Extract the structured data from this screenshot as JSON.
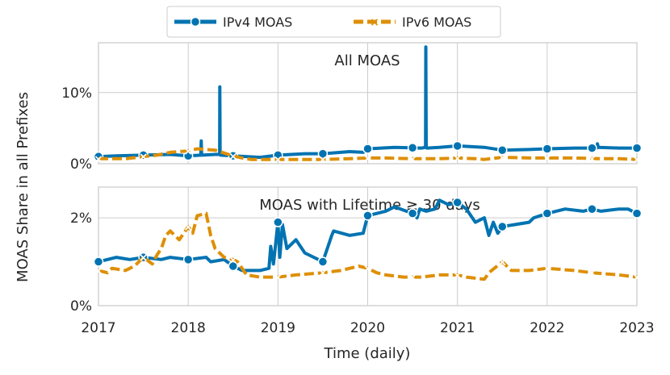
{
  "chart_data": {
    "type": "line",
    "xlabel": "Time (daily)",
    "ylabel": "MOAS Share in all Prefixes",
    "x_ticks": [
      "2017",
      "2018",
      "2019",
      "2020",
      "2021",
      "2022",
      "2023"
    ],
    "legend": {
      "placement": "top-center",
      "entries": [
        {
          "name": "IPv4 MOAS",
          "color": "#0173b2",
          "marker": "circle",
          "style": "solid"
        },
        {
          "name": "IPv6 MOAS",
          "color": "#de8f05",
          "marker": "x",
          "style": "dashed"
        }
      ]
    },
    "panels": [
      {
        "title": "All MOAS",
        "xlim": [
          2017,
          2023
        ],
        "ylim": [
          0,
          17
        ],
        "y_ticks": [
          {
            "value": 0,
            "label": "0%"
          },
          {
            "value": 10,
            "label": "10%"
          }
        ],
        "series": [
          {
            "name": "IPv4 MOAS",
            "x": [
              2017.0,
              2017.2,
              2017.5,
              2017.8,
              2018.0,
              2018.14,
              2018.145,
              2018.15,
              2018.3,
              2018.35,
              2018.352,
              2018.356,
              2018.36,
              2018.5,
              2018.8,
              2019.0,
              2019.3,
              2019.5,
              2019.8,
              2019.95,
              2020.0,
              2020.3,
              2020.6,
              2020.645,
              2020.648,
              2020.652,
              2020.66,
              2020.8,
              2021.0,
              2021.3,
              2021.5,
              2021.8,
              2022.0,
              2022.3,
              2022.55,
              2022.56,
              2022.57,
              2022.8,
              2023.0
            ],
            "y": [
              1.0,
              1.1,
              1.2,
              1.3,
              1.1,
              1.2,
              3.2,
              1.2,
              1.3,
              1.3,
              10.8,
              1.3,
              1.2,
              1.1,
              0.9,
              1.2,
              1.4,
              1.4,
              1.7,
              1.6,
              2.1,
              2.3,
              2.2,
              2.3,
              16.4,
              2.3,
              2.2,
              2.3,
              2.5,
              2.3,
              1.9,
              2.0,
              2.1,
              2.2,
              2.2,
              2.8,
              2.3,
              2.2,
              2.2
            ]
          },
          {
            "name": "IPv6 MOAS",
            "x": [
              2017.0,
              2017.3,
              2017.5,
              2017.65,
              2017.8,
              2018.0,
              2018.1,
              2018.2,
              2018.3,
              2018.5,
              2018.6,
              2018.7,
              2019.0,
              2019.3,
              2019.5,
              2019.8,
              2020.0,
              2020.2,
              2020.5,
              2020.8,
              2021.0,
              2021.2,
              2021.3,
              2021.5,
              2021.8,
              2022.0,
              2022.3,
              2022.6,
              2022.8,
              2023.0
            ],
            "y": [
              0.7,
              0.7,
              1.0,
              1.2,
              1.6,
              1.8,
              2.1,
              2.0,
              1.9,
              1.1,
              0.8,
              0.6,
              0.6,
              0.6,
              0.6,
              0.7,
              0.8,
              0.8,
              0.7,
              0.7,
              0.8,
              0.7,
              0.6,
              0.9,
              0.8,
              0.8,
              0.8,
              0.7,
              0.7,
              0.6
            ]
          }
        ]
      },
      {
        "title": "MOAS with Lifetime ≥ 30 days",
        "xlim": [
          2017,
          2023
        ],
        "ylim": [
          0,
          2.7
        ],
        "y_ticks": [
          {
            "value": 0,
            "label": "0%"
          },
          {
            "value": 2,
            "label": "2%"
          }
        ],
        "series": [
          {
            "name": "IPv4 MOAS",
            "x": [
              2017.0,
              2017.1,
              2017.2,
              2017.35,
              2017.5,
              2017.7,
              2017.8,
              2018.0,
              2018.2,
              2018.25,
              2018.4,
              2018.5,
              2018.6,
              2018.8,
              2018.9,
              2018.92,
              2018.95,
              2019.0,
              2019.02,
              2019.05,
              2019.1,
              2019.2,
              2019.3,
              2019.5,
              2019.6,
              2019.62,
              2019.8,
              2019.95,
              2020.0,
              2020.2,
              2020.3,
              2020.5,
              2020.55,
              2020.58,
              2020.65,
              2020.75,
              2020.8,
              2020.9,
              2021.0,
              2021.1,
              2021.2,
              2021.3,
              2021.35,
              2021.4,
              2021.45,
              2021.5,
              2021.8,
              2021.85,
              2022.0,
              2022.2,
              2022.4,
              2022.5,
              2022.6,
              2022.8,
              2022.9,
              2023.0
            ],
            "y": [
              1.0,
              1.05,
              1.1,
              1.05,
              1.1,
              1.05,
              1.1,
              1.05,
              1.1,
              1.0,
              1.05,
              0.9,
              0.8,
              0.8,
              0.85,
              1.35,
              0.95,
              1.9,
              1.1,
              1.85,
              1.3,
              1.5,
              1.2,
              1.0,
              1.6,
              1.7,
              1.6,
              1.65,
              2.05,
              2.15,
              2.25,
              2.1,
              2.0,
              2.2,
              2.15,
              2.2,
              2.4,
              2.3,
              2.35,
              2.2,
              1.9,
              2.0,
              1.6,
              1.9,
              1.65,
              1.8,
              1.9,
              2.0,
              2.1,
              2.2,
              2.15,
              2.2,
              2.15,
              2.2,
              2.2,
              2.1
            ]
          },
          {
            "name": "IPv6 MOAS",
            "x": [
              2017.0,
              2017.1,
              2017.15,
              2017.3,
              2017.4,
              2017.5,
              2017.6,
              2017.65,
              2017.7,
              2017.75,
              2017.8,
              2017.9,
              2018.0,
              2018.05,
              2018.1,
              2018.2,
              2018.25,
              2018.3,
              2018.35,
              2018.4,
              2018.5,
              2018.55,
              2018.6,
              2018.65,
              2018.8,
              2019.0,
              2019.2,
              2019.5,
              2019.7,
              2019.9,
              2020.0,
              2020.1,
              2020.2,
              2020.4,
              2020.6,
              2020.8,
              2021.0,
              2021.1,
              2021.3,
              2021.35,
              2021.5,
              2021.6,
              2021.8,
              2022.0,
              2022.3,
              2022.5,
              2022.8,
              2023.0
            ],
            "y": [
              0.8,
              0.75,
              0.85,
              0.8,
              0.9,
              1.1,
              0.95,
              1.15,
              1.3,
              1.6,
              1.7,
              1.5,
              1.8,
              1.65,
              2.05,
              2.1,
              1.6,
              1.3,
              1.2,
              1.1,
              1.05,
              1.0,
              0.85,
              0.7,
              0.65,
              0.65,
              0.7,
              0.75,
              0.8,
              0.9,
              0.85,
              0.75,
              0.7,
              0.65,
              0.65,
              0.7,
              0.7,
              0.65,
              0.6,
              0.75,
              1.0,
              0.8,
              0.8,
              0.85,
              0.8,
              0.75,
              0.7,
              0.65
            ]
          }
        ]
      }
    ]
  }
}
